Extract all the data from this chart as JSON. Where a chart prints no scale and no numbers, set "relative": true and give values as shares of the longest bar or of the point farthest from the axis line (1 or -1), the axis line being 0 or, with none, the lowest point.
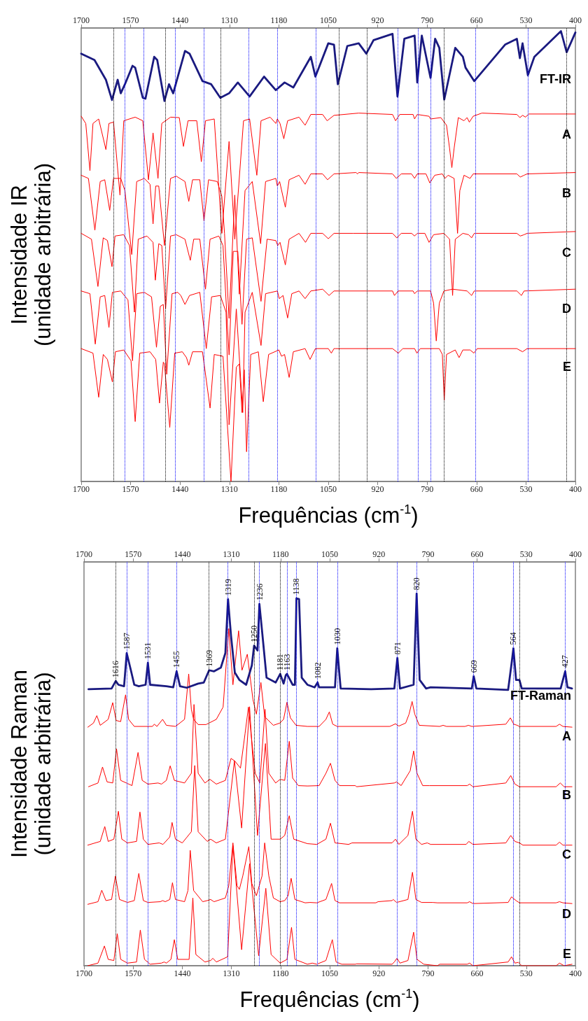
{
  "chart_data": [
    {
      "type": "line",
      "relative": true,
      "marker": "none",
      "line_style": "solid",
      "xlabel": "Frequências (cm$^{-1}$)",
      "ylabel": "Intensidade IR\n(unidade arbitrária)",
      "xlim": [
        1700,
        400
      ],
      "xticks": [
        1700,
        1570,
        1440,
        1310,
        1180,
        1050,
        920,
        790,
        660,
        530,
        400
      ],
      "x2lim": [
        1700,
        400
      ],
      "x2ticks": [
        1700,
        1570,
        1440,
        1310,
        1180,
        1050,
        920,
        790,
        660,
        530,
        400
      ],
      "series": [
        {
          "name": "FT-IR",
          "color": "#1a1a80",
          "x": [
            1700,
            1665,
            1635,
            1619,
            1604,
            1596,
            1585,
            1565,
            1558,
            1538,
            1531,
            1508,
            1500,
            1481,
            1469,
            1458,
            1427,
            1415,
            1381,
            1358,
            1334,
            1311,
            1288,
            1257,
            1219,
            1188,
            1165,
            1142,
            1096,
            1084,
            1050,
            1035,
            1025,
            1000,
            970,
            950,
            931,
            881,
            868,
            850,
            823,
            816,
            804,
            781,
            769,
            758,
            745,
            716,
            696,
            689,
            666,
            585,
            554,
            546,
            539,
            525,
            508,
            438,
            423,
            400
          ],
          "values": [
            0.95,
            0.936,
            0.892,
            0.847,
            0.892,
            0.862,
            0.882,
            0.923,
            0.919,
            0.852,
            0.85,
            0.943,
            0.936,
            0.845,
            0.882,
            0.862,
            0.956,
            0.95,
            0.889,
            0.882,
            0.852,
            0.862,
            0.886,
            0.855,
            0.899,
            0.869,
            0.886,
            0.875,
            0.943,
            0.899,
            0.973,
            0.97,
            0.882,
            0.967,
            0.973,
            0.95,
            0.98,
            0.994,
            0.855,
            0.983,
            0.99,
            0.886,
            0.99,
            0.896,
            0.983,
            0.963,
            0.848,
            0.963,
            0.943,
            0.919,
            0.889,
            0.97,
            0.983,
            0.94,
            0.973,
            0.902,
            0.943,
            1.0,
            0.953,
            0.997
          ]
        },
        {
          "name": "A",
          "color": "#ff0000",
          "x": [
            1700,
            1688,
            1677,
            1669,
            1654,
            1635,
            1627,
            1615,
            1598,
            1588,
            1558,
            1538,
            1523,
            1511,
            1498,
            1488,
            1465,
            1442,
            1431,
            1419,
            1396,
            1384,
            1373,
            1350,
            1330,
            1311,
            1296,
            1273,
            1257,
            1238,
            1227,
            1203,
            1188,
            1184,
            1177,
            1167,
            1157,
            1127,
            1111,
            1096,
            1065,
            1053,
            1035,
            970,
            881,
            873,
            862,
            827,
            823,
            816,
            785,
            781,
            754,
            739,
            731,
            725,
            719,
            708,
            693,
            685,
            679,
            669,
            646,
            554,
            546,
            539,
            531,
            523,
            400
          ],
          "values": [
            0.811,
            0.795,
            0.69,
            0.795,
            0.805,
            0.737,
            0.795,
            0.798,
            0.636,
            0.801,
            0.809,
            0.801,
            0.67,
            0.774,
            0.673,
            0.795,
            0.809,
            0.808,
            0.744,
            0.801,
            0.801,
            0.71,
            0.801,
            0.805,
            0.551,
            0.755,
            0.538,
            0.801,
            0.805,
            0.68,
            0.801,
            0.809,
            0.795,
            0.805,
            0.795,
            0.761,
            0.801,
            0.809,
            0.791,
            0.815,
            0.815,
            0.801,
            0.813,
            0.818,
            0.815,
            0.801,
            0.815,
            0.815,
            0.805,
            0.815,
            0.811,
            0.805,
            0.808,
            0.791,
            0.74,
            0.697,
            0.74,
            0.808,
            0.801,
            0.808,
            0.798,
            0.811,
            0.818,
            0.815,
            0.808,
            0.813,
            0.809,
            0.816,
            0.816
          ]
        },
        {
          "name": "B",
          "color": "#ff0000",
          "x": [
            1700,
            1681,
            1664,
            1650,
            1638,
            1625,
            1615,
            1596,
            1585,
            1567,
            1554,
            1534,
            1519,
            1511,
            1504,
            1496,
            1481,
            1465,
            1450,
            1427,
            1417,
            1407,
            1388,
            1377,
            1365,
            1342,
            1330,
            1323,
            1311,
            1296,
            1284,
            1269,
            1250,
            1228,
            1215,
            1188,
            1184,
            1178,
            1163,
            1153,
            1127,
            1111,
            1096,
            1065,
            1052,
            1035,
            977,
            973,
            970,
            881,
            871,
            858,
            831,
            823,
            816,
            793,
            783,
            770,
            750,
            743,
            735,
            719,
            710,
            704,
            693,
            677,
            669,
            554,
            545,
            535,
            527,
            400
          ],
          "values": [
            0.68,
            0.673,
            0.558,
            0.666,
            0.67,
            0.602,
            0.673,
            0.673,
            0.646,
            0.504,
            0.666,
            0.673,
            0.66,
            0.572,
            0.656,
            0.656,
            0.524,
            0.673,
            0.678,
            0.666,
            0.622,
            0.67,
            0.67,
            0.579,
            0.67,
            0.666,
            0.633,
            0.551,
            0.362,
            0.636,
            0.416,
            0.646,
            0.666,
            0.528,
            0.666,
            0.673,
            0.656,
            0.666,
            0.609,
            0.67,
            0.68,
            0.66,
            0.683,
            0.683,
            0.67,
            0.683,
            0.686,
            0.683,
            0.686,
            0.683,
            0.673,
            0.683,
            0.683,
            0.673,
            0.683,
            0.683,
            0.663,
            0.68,
            0.683,
            0.673,
            0.68,
            0.673,
            0.551,
            0.646,
            0.68,
            0.673,
            0.683,
            0.683,
            0.676,
            0.68,
            0.683,
            0.686
          ]
        },
        {
          "name": "C",
          "color": "#ff0000",
          "x": [
            1700,
            1673,
            1656,
            1642,
            1631,
            1619,
            1611,
            1588,
            1573,
            1560,
            1550,
            1527,
            1511,
            1505,
            1496,
            1488,
            1478,
            1465,
            1450,
            1427,
            1413,
            1404,
            1388,
            1373,
            1361,
            1338,
            1327,
            1311,
            1300,
            1288,
            1277,
            1265,
            1250,
            1227,
            1211,
            1188,
            1183,
            1177,
            1163,
            1153,
            1127,
            1110,
            1096,
            1065,
            1050,
            1035,
            985,
            881,
            870,
            858,
            831,
            823,
            816,
            796,
            785,
            773,
            746,
            731,
            723,
            716,
            696,
            681,
            673,
            666,
            554,
            545,
            535,
            527,
            400
          ],
          "values": [
            0.551,
            0.538,
            0.433,
            0.541,
            0.535,
            0.477,
            0.545,
            0.548,
            0.524,
            0.376,
            0.538,
            0.545,
            0.531,
            0.447,
            0.528,
            0.524,
            0.383,
            0.545,
            0.548,
            0.538,
            0.491,
            0.538,
            0.538,
            0.427,
            0.538,
            0.545,
            0.524,
            0.281,
            0.511,
            0.511,
            0.349,
            0.538,
            0.541,
            0.4,
            0.538,
            0.535,
            0.524,
            0.531,
            0.481,
            0.538,
            0.551,
            0.531,
            0.551,
            0.551,
            0.539,
            0.551,
            0.551,
            0.551,
            0.541,
            0.551,
            0.551,
            0.545,
            0.551,
            0.551,
            0.531,
            0.548,
            0.551,
            0.538,
            0.413,
            0.538,
            0.551,
            0.548,
            0.541,
            0.551,
            0.551,
            0.545,
            0.548,
            0.551,
            0.555
          ]
        },
        {
          "name": "D",
          "color": "#ff0000",
          "x": [
            1700,
            1677,
            1663,
            1650,
            1638,
            1627,
            1618,
            1596,
            1577,
            1565,
            1554,
            1534,
            1515,
            1502,
            1492,
            1484,
            1475,
            1461,
            1446,
            1438,
            1427,
            1415,
            1388,
            1371,
            1357,
            1334,
            1319,
            1311,
            1292,
            1275,
            1269,
            1250,
            1227,
            1215,
            1184,
            1179,
            1169,
            1157,
            1146,
            1127,
            1111,
            1096,
            1065,
            1048,
            1035,
            881,
            876,
            866,
            827,
            823,
            816,
            781,
            773,
            766,
            758,
            746,
            723,
            685,
            673,
            666,
            554,
            542,
            535,
            400
          ],
          "values": [
            0.423,
            0.417,
            0.305,
            0.41,
            0.413,
            0.342,
            0.42,
            0.423,
            0.403,
            0.268,
            0.417,
            0.42,
            0.41,
            0.298,
            0.389,
            0.393,
            0.238,
            0.417,
            0.42,
            0.413,
            0.393,
            0.413,
            0.42,
            0.295,
            0.41,
            0.413,
            0.376,
            0.126,
            0.383,
            0.153,
            0.376,
            0.42,
            0.302,
            0.417,
            0.423,
            0.406,
            0.413,
            0.363,
            0.417,
            0.423,
            0.406,
            0.423,
            0.427,
            0.413,
            0.423,
            0.423,
            0.413,
            0.423,
            0.423,
            0.417,
            0.423,
            0.423,
            0.396,
            0.312,
            0.396,
            0.423,
            0.427,
            0.423,
            0.413,
            0.423,
            0.423,
            0.413,
            0.423,
            0.427
          ]
        },
        {
          "name": "E",
          "color": "#ff0000",
          "x": [
            1700,
            1669,
            1654,
            1642,
            1631,
            1618,
            1610,
            1588,
            1569,
            1558,
            1546,
            1519,
            1504,
            1494,
            1484,
            1481,
            1467,
            1454,
            1434,
            1423,
            1417,
            1407,
            1381,
            1361,
            1350,
            1327,
            1306,
            1292,
            1284,
            1277,
            1271,
            1265,
            1254,
            1234,
            1221,
            1207,
            1180,
            1173,
            1165,
            1153,
            1142,
            1111,
            1098,
            1084,
            1050,
            1042,
            1035,
            1031,
            881,
            866,
            854,
            823,
            817,
            808,
            758,
            750,
            745,
            739,
            716,
            706,
            696,
            677,
            667,
            658,
            554,
            539,
            527,
            400
          ],
          "values": [
            0.295,
            0.285,
            0.187,
            0.282,
            0.271,
            0.221,
            0.288,
            0.292,
            0.268,
            0.133,
            0.285,
            0.288,
            0.271,
            0.174,
            0.265,
            0.261,
            0.12,
            0.285,
            0.288,
            0.275,
            0.258,
            0.288,
            0.288,
            0.163,
            0.282,
            0.278,
            0,
            0.254,
            0.261,
            0.153,
            0.248,
            0.066,
            0.282,
            0.288,
            0.177,
            0.282,
            0.292,
            0.278,
            0.282,
            0.231,
            0.288,
            0.295,
            0.271,
            0.295,
            0.295,
            0.285,
            0.295,
            0.295,
            0.295,
            0.285,
            0.295,
            0.295,
            0.285,
            0.295,
            0.295,
            0.282,
            0.18,
            0.282,
            0.292,
            0.275,
            0.292,
            0.292,
            0.285,
            0.295,
            0.295,
            0.288,
            0.295,
            0.295
          ]
        }
      ],
      "ref_lines": [
        {
          "axis": "x",
          "value": 1615,
          "color": "#000000",
          "line_style": "dotted"
        },
        {
          "axis": "x",
          "value": 1586,
          "color": "#0000ff",
          "line_style": "dotted"
        },
        {
          "axis": "x",
          "value": 1536,
          "color": "#0000ff",
          "line_style": "dotted"
        },
        {
          "axis": "x",
          "value": 1479,
          "color": "#000000",
          "line_style": "dotted"
        },
        {
          "axis": "x",
          "value": 1452,
          "color": "#0000ff",
          "line_style": "dotted"
        },
        {
          "axis": "x",
          "value": 1377,
          "color": "#0000ff",
          "line_style": "dotted"
        },
        {
          "axis": "x",
          "value": 1333,
          "color": "#000000",
          "line_style": "dotted"
        },
        {
          "axis": "x",
          "value": 1259,
          "color": "#0000ff",
          "line_style": "dotted"
        },
        {
          "axis": "x",
          "value": 1184,
          "color": "#0000ff",
          "line_style": "dotted"
        },
        {
          "axis": "x",
          "value": 1082,
          "color": "#0000ff",
          "line_style": "dotted"
        },
        {
          "axis": "x",
          "value": 1022,
          "color": "#000000",
          "line_style": "dotted"
        },
        {
          "axis": "x",
          "value": 949,
          "color": "#000000",
          "line_style": "dotted"
        },
        {
          "axis": "x",
          "value": 868,
          "color": "#0000ff",
          "line_style": "dotted"
        },
        {
          "axis": "x",
          "value": 814,
          "color": "#0000ff",
          "line_style": "dotted"
        },
        {
          "axis": "x",
          "value": 781,
          "color": "#0000ff",
          "line_style": "dotted"
        },
        {
          "axis": "x",
          "value": 745,
          "color": "#000000",
          "line_style": "dotted"
        },
        {
          "axis": "x",
          "value": 662,
          "color": "#0000ff",
          "line_style": "dotted"
        },
        {
          "axis": "x",
          "value": 525,
          "color": "#0000ff",
          "line_style": "dotted"
        },
        {
          "axis": "x",
          "value": 423,
          "color": "#000000",
          "line_style": "dotted"
        }
      ]
    },
    {
      "type": "line",
      "relative": true,
      "marker": "none",
      "line_style": "solid",
      "xlabel": "Frequências (cm$^{-1}$)",
      "ylabel": "Intensidade Raman\n(unidade arbitrária)",
      "xlim": [
        1700,
        400
      ],
      "xticks": [
        1700,
        1570,
        1440,
        1310,
        1180,
        1050,
        920,
        790,
        660,
        530,
        400
      ],
      "x2lim": [
        1700,
        400
      ],
      "x2ticks": [
        1700,
        1570,
        1440,
        1310,
        1180,
        1050,
        920,
        790,
        660,
        530,
        400
      ],
      "series": [
        {
          "name": "FT-Raman",
          "color": "#1a1a80",
          "x": [
            1688,
            1627,
            1616,
            1609,
            1594,
            1587,
            1576,
            1567,
            1555,
            1537,
            1531,
            1525,
            1482,
            1464,
            1455,
            1446,
            1428,
            1398,
            1383,
            1369,
            1356,
            1338,
            1326,
            1319,
            1311,
            1301,
            1289,
            1271,
            1256,
            1250,
            1241,
            1236,
            1229,
            1217,
            1193,
            1181,
            1172,
            1166,
            1163,
            1148,
            1142,
            1138,
            1131,
            1124,
            1109,
            1090,
            1082,
            1078,
            1060,
            1036,
            1030,
            1021,
            940,
            879,
            871,
            864,
            828,
            820,
            812,
            795,
            783,
            674,
            669,
            662,
            578,
            569,
            564,
            557,
            548,
            542,
            439,
            427,
            421,
            409
          ],
          "values": [
            0.743,
            0.745,
            0.765,
            0.755,
            0.751,
            0.84,
            0.794,
            0.755,
            0.751,
            0.755,
            0.814,
            0.755,
            0.751,
            0.748,
            0.791,
            0.751,
            0.747,
            0.758,
            0.761,
            0.794,
            0.791,
            0.801,
            0.84,
            0.985,
            0.886,
            0.788,
            0.768,
            0.755,
            0.807,
            0.86,
            0.847,
            0.972,
            0.9,
            0.774,
            0.761,
            0.784,
            0.758,
            0.781,
            0.784,
            0.755,
            0.755,
            0.987,
            0.985,
            0.774,
            0.755,
            0.748,
            0.761,
            0.748,
            0.748,
            0.748,
            0.853,
            0.745,
            0.743,
            0.745,
            0.827,
            0.745,
            0.755,
            1.0,
            0.768,
            0.745,
            0.748,
            0.745,
            0.778,
            0.745,
            0.741,
            0.811,
            0.853,
            0.768,
            0.768,
            0.745,
            0.745,
            0.791,
            0.748,
            0.745
          ]
        },
        {
          "name": "A",
          "color": "#ff0000",
          "x": [
            1690,
            1675,
            1666,
            1657,
            1636,
            1624,
            1615,
            1603,
            1590,
            1582,
            1567,
            1519,
            1514,
            1507,
            1492,
            1482,
            1458,
            1434,
            1423,
            1416,
            1410,
            1398,
            1377,
            1350,
            1332,
            1317,
            1306,
            1291,
            1282,
            1268,
            1253,
            1244,
            1232,
            1222,
            1199,
            1182,
            1172,
            1163,
            1154,
            1139,
            1109,
            1078,
            1060,
            1051,
            1042,
            1030,
            891,
            876,
            867,
            849,
            840,
            832,
            825,
            813,
            759,
            750,
            741,
            692,
            683,
            674,
            584,
            572,
            563,
            554,
            548,
            451,
            442,
            433,
            409
          ],
          "values": [
            0.641,
            0.652,
            0.672,
            0.646,
            0.662,
            0.707,
            0.659,
            0.656,
            0.728,
            0.662,
            0.643,
            0.643,
            0.649,
            0.643,
            0.662,
            0.646,
            0.643,
            0.662,
            0.784,
            0.689,
            0.662,
            0.648,
            0.648,
            0.662,
            0.695,
            0.906,
            0.755,
            0.9,
            0.794,
            0.837,
            0.715,
            0.676,
            0.761,
            0.669,
            0.646,
            0.652,
            0.662,
            0.708,
            0.666,
            0.646,
            0.643,
            0.643,
            0.662,
            0.682,
            0.649,
            0.643,
            0.643,
            0.65,
            0.644,
            0.652,
            0.676,
            0.71,
            0.676,
            0.646,
            0.643,
            0.646,
            0.643,
            0.643,
            0.646,
            0.643,
            0.649,
            0.666,
            0.649,
            0.646,
            0.643,
            0.643,
            0.649,
            0.643,
            0.641
          ]
        },
        {
          "name": "B",
          "color": "#ff0000",
          "x": [
            1688,
            1663,
            1651,
            1639,
            1624,
            1614,
            1603,
            1573,
            1557,
            1546,
            1531,
            1504,
            1495,
            1482,
            1472,
            1461,
            1434,
            1416,
            1409,
            1398,
            1380,
            1367,
            1350,
            1326,
            1311,
            1301,
            1286,
            1274,
            1265,
            1258,
            1247,
            1235,
            1221,
            1211,
            1193,
            1181,
            1169,
            1157,
            1148,
            1133,
            1109,
            1078,
            1060,
            1048,
            1036,
            1024,
            982,
            979,
            879,
            873,
            861,
            837,
            828,
            819,
            804,
            786,
            686,
            680,
            671,
            584,
            571,
            560,
            548,
            451,
            440,
            430,
            409
          ],
          "values": [
            0.481,
            0.491,
            0.534,
            0.494,
            0.491,
            0.583,
            0.498,
            0.484,
            0.573,
            0.498,
            0.488,
            0.491,
            0.488,
            0.498,
            0.537,
            0.498,
            0.491,
            0.517,
            0.702,
            0.517,
            0.491,
            0.501,
            0.488,
            0.498,
            0.557,
            0.55,
            0.531,
            0.623,
            0.695,
            0.623,
            0.517,
            0.491,
            0.689,
            0.517,
            0.491,
            0.501,
            0.498,
            0.603,
            0.504,
            0.484,
            0.483,
            0.484,
            0.517,
            0.544,
            0.498,
            0.484,
            0.484,
            0.481,
            0.491,
            0.494,
            0.484,
            0.524,
            0.577,
            0.517,
            0.484,
            0.484,
            0.484,
            0.488,
            0.481,
            0.491,
            0.511,
            0.488,
            0.481,
            0.481,
            0.491,
            0.481,
            0.481
          ]
        },
        {
          "name": "C",
          "color": "#ff0000",
          "x": [
            1690,
            1657,
            1645,
            1636,
            1621,
            1609,
            1600,
            1585,
            1561,
            1552,
            1543,
            1531,
            1501,
            1491,
            1473,
            1467,
            1458,
            1440,
            1416,
            1407,
            1398,
            1374,
            1365,
            1350,
            1326,
            1302,
            1283,
            1262,
            1241,
            1220,
            1205,
            1181,
            1169,
            1157,
            1145,
            1109,
            1084,
            1060,
            1048,
            1036,
            1000,
            991,
            885,
            876,
            867,
            843,
            831,
            822,
            807,
            792,
            783,
            689,
            682,
            671,
            584,
            571,
            560,
            548,
            539,
            451,
            442,
            433,
            409
          ],
          "values": [
            0.324,
            0.334,
            0.374,
            0.334,
            0.34,
            0.415,
            0.34,
            0.33,
            0.334,
            0.413,
            0.34,
            0.326,
            0.33,
            0.326,
            0.346,
            0.385,
            0.34,
            0.33,
            0.36,
            0.538,
            0.36,
            0.334,
            0.34,
            0.33,
            0.34,
            0.551,
            0.37,
            0.696,
            0.35,
            0.597,
            0.34,
            0.34,
            0.35,
            0.403,
            0.34,
            0.328,
            0.326,
            0.34,
            0.383,
            0.33,
            0.326,
            0.33,
            0.33,
            0.34,
            0.326,
            0.35,
            0.415,
            0.34,
            0.326,
            0.33,
            0.326,
            0.326,
            0.334,
            0.326,
            0.33,
            0.35,
            0.334,
            0.33,
            0.324,
            0.324,
            0.332,
            0.324,
            0.324
          ]
        },
        {
          "name": "D",
          "color": "#ff0000",
          "x": [
            1690,
            1663,
            1653,
            1642,
            1627,
            1617,
            1606,
            1585,
            1567,
            1555,
            1543,
            1531,
            1498,
            1492,
            1485,
            1473,
            1466,
            1458,
            1434,
            1425,
            1419,
            1410,
            1386,
            1374,
            1365,
            1356,
            1326,
            1317,
            1306,
            1295,
            1289,
            1280,
            1264,
            1256,
            1244,
            1229,
            1222,
            1211,
            1199,
            1181,
            1169,
            1160,
            1152,
            1142,
            1115,
            1102,
            1084,
            1060,
            1045,
            1036,
            1024,
            928,
            922,
            885,
            882,
            873,
            843,
            831,
            822,
            807,
            777,
            765,
            686,
            680,
            671,
            578,
            569,
            557,
            548,
            451,
            442,
            433,
            409
          ],
          "values": [
            0.165,
            0.172,
            0.203,
            0.175,
            0.178,
            0.241,
            0.178,
            0.17,
            0.175,
            0.248,
            0.175,
            0.17,
            0.172,
            0.175,
            0.172,
            0.178,
            0.223,
            0.178,
            0.172,
            0.202,
            0.31,
            0.202,
            0.172,
            0.175,
            0.178,
            0.172,
            0.182,
            0.215,
            0.33,
            0.215,
            0.205,
            0.241,
            0.32,
            0.221,
            0.188,
            0.241,
            0.33,
            0.241,
            0.182,
            0.172,
            0.175,
            0.188,
            0.235,
            0.178,
            0.169,
            0.17,
            0.169,
            0.178,
            0.221,
            0.175,
            0.169,
            0.169,
            0.172,
            0.175,
            0.178,
            0.17,
            0.178,
            0.251,
            0.178,
            0.17,
            0.17,
            0.169,
            0.169,
            0.172,
            0.167,
            0.17,
            0.185,
            0.175,
            0.169,
            0.169,
            0.172,
            0.169,
            0.167
          ]
        },
        {
          "name": "E",
          "color": "#ff0000",
          "x": [
            1690,
            1663,
            1646,
            1636,
            1621,
            1612,
            1603,
            1585,
            1561,
            1551,
            1540,
            1525,
            1495,
            1488,
            1482,
            1470,
            1461,
            1452,
            1422,
            1412,
            1404,
            1380,
            1365,
            1359,
            1350,
            1320,
            1306,
            1283,
            1262,
            1238,
            1219,
            1205,
            1181,
            1163,
            1151,
            1142,
            1109,
            1096,
            1084,
            1060,
            1043,
            1033,
            1018,
            982,
            979,
            885,
            879,
            872,
            864,
            843,
            828,
            819,
            801,
            765,
            759,
            686,
            680,
            671,
            578,
            569,
            560,
            551,
            542,
            451,
            442,
            430,
            409
          ],
          "values": [
            0,
            0.007,
            0.053,
            0.017,
            0.014,
            0.086,
            0.017,
            0.007,
            0.01,
            0.096,
            0.017,
            0.004,
            0.007,
            0.01,
            0.007,
            0.017,
            0.07,
            0.017,
            0.017,
            0.182,
            0.03,
            0.01,
            0.014,
            0.02,
            0.01,
            0.024,
            0.323,
            0.043,
            0.274,
            0.027,
            0.208,
            0.03,
            0.007,
            0.017,
            0.103,
            0.017,
            0.004,
            0.007,
            0.004,
            0.014,
            0.07,
            0.01,
            0.004,
            0.004,
            0.005,
            0.004,
            0.01,
            0.02,
            0.007,
            0.014,
            0.09,
            0.017,
            0.004,
            0,
            0.004,
            0.004,
            0.007,
            0,
            0.01,
            0.024,
            0.007,
            0.009,
            0,
            0,
            0.007,
            0,
            0.004
          ]
        }
      ],
      "annotations": [
        {
          "text": "1616",
          "x": 1616,
          "y": 0.765
        },
        {
          "text": "1587",
          "x": 1587,
          "y": 0.84
        },
        {
          "text": "1531",
          "x": 1531,
          "y": 0.814
        },
        {
          "text": "1455",
          "x": 1455,
          "y": 0.791
        },
        {
          "text": "1369",
          "x": 1369,
          "y": 0.794
        },
        {
          "text": "1319",
          "x": 1319,
          "y": 0.985
        },
        {
          "text": "1250",
          "x": 1250,
          "y": 0.86
        },
        {
          "text": "1236",
          "x": 1236,
          "y": 0.972
        },
        {
          "text": "1181",
          "x": 1181,
          "y": 0.784
        },
        {
          "text": "1163",
          "x": 1163,
          "y": 0.784
        },
        {
          "text": "1138",
          "x": 1138,
          "y": 0.987
        },
        {
          "text": "1082",
          "x": 1082,
          "y": 0.761
        },
        {
          "text": "1030",
          "x": 1030,
          "y": 0.853
        },
        {
          "text": "871",
          "x": 871,
          "y": 0.827
        },
        {
          "text": "820",
          "x": 820,
          "y": 1.0
        },
        {
          "text": "669",
          "x": 669,
          "y": 0.778
        },
        {
          "text": "564",
          "x": 564,
          "y": 0.853
        },
        {
          "text": "427",
          "x": 427,
          "y": 0.791
        }
      ],
      "ref_lines": [
        {
          "axis": "x",
          "value": 1616,
          "color": "#000000",
          "line_style": "dotted"
        },
        {
          "axis": "x",
          "value": 1587,
          "color": "#0000ff",
          "line_style": "dotted"
        },
        {
          "axis": "x",
          "value": 1531,
          "color": "#0000ff",
          "line_style": "dotted"
        },
        {
          "axis": "x",
          "value": 1455,
          "color": "#0000ff",
          "line_style": "dotted"
        },
        {
          "axis": "x",
          "value": 1369,
          "color": "#000000",
          "line_style": "dotted"
        },
        {
          "axis": "x",
          "value": 1319,
          "color": "#0000ff",
          "line_style": "dotted"
        },
        {
          "axis": "x",
          "value": 1250,
          "color": "#000000",
          "line_style": "dotted"
        },
        {
          "axis": "x",
          "value": 1236,
          "color": "#0000ff",
          "line_style": "dotted"
        },
        {
          "axis": "x",
          "value": 1181,
          "color": "#000000",
          "line_style": "dotted"
        },
        {
          "axis": "x",
          "value": 1163,
          "color": "#0000ff",
          "line_style": "dotted"
        },
        {
          "axis": "x",
          "value": 1138,
          "color": "#0000ff",
          "line_style": "dotted"
        },
        {
          "axis": "x",
          "value": 1082,
          "color": "#0000ff",
          "line_style": "dotted"
        },
        {
          "axis": "x",
          "value": 1030,
          "color": "#0000ff",
          "line_style": "dotted"
        },
        {
          "axis": "x",
          "value": 871,
          "color": "#0000ff",
          "line_style": "dotted"
        },
        {
          "axis": "x",
          "value": 820,
          "color": "#0000ff",
          "line_style": "dotted"
        },
        {
          "axis": "x",
          "value": 669,
          "color": "#0000ff",
          "line_style": "dotted"
        },
        {
          "axis": "x",
          "value": 564,
          "color": "#0000ff",
          "line_style": "dotted"
        },
        {
          "axis": "x",
          "value": 548,
          "color": "#000000",
          "line_style": "dotted"
        },
        {
          "axis": "x",
          "value": 427,
          "color": "#0000ff",
          "line_style": "dotted"
        }
      ]
    }
  ]
}
